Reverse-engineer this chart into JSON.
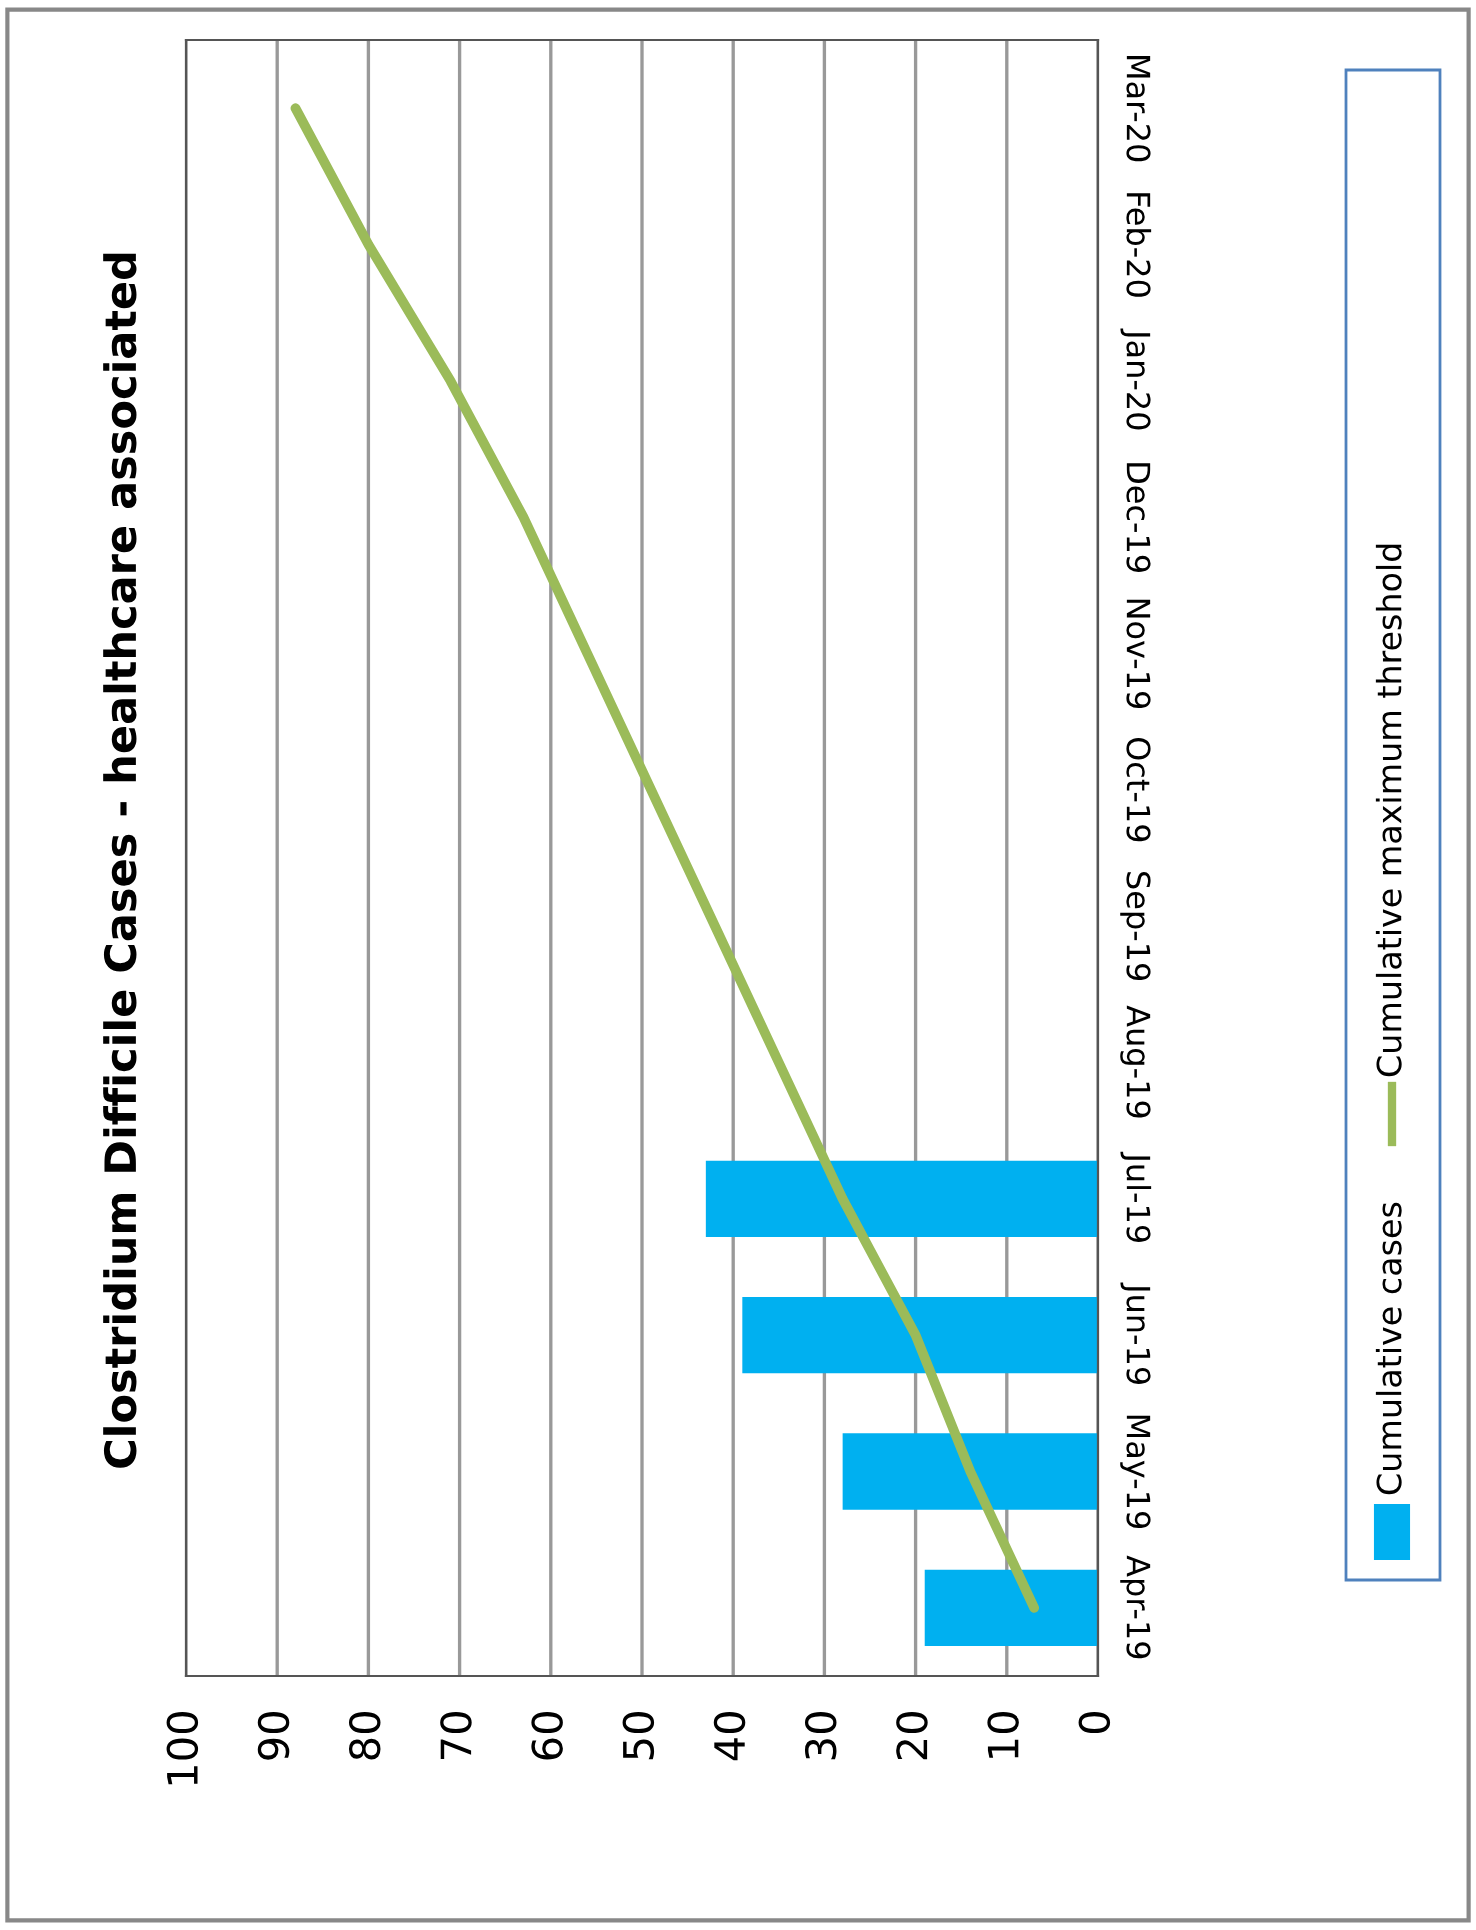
{
  "chart_data": {
    "type": "bar",
    "orientation": "horizontal",
    "title": "Clostridium Difficile Cases - healthcare associated",
    "categories": [
      "Mar-20",
      "Feb-20",
      "Jan-20",
      "Dec-19",
      "Nov-19",
      "Oct-19",
      "Sep-19",
      "Aug-19",
      "Jul-19",
      "Jun-19",
      "May-19",
      "Apr-19"
    ],
    "series": [
      {
        "name": "Cumulative cases",
        "color": "#00b0f0",
        "values": [
          null,
          null,
          null,
          null,
          null,
          null,
          null,
          null,
          43,
          39,
          28,
          19
        ]
      },
      {
        "name": "Cumulative maximum threshold",
        "type": "line",
        "color": "#9bbb59",
        "values": [
          88,
          80,
          71,
          63,
          56,
          49,
          42,
          35,
          28,
          20,
          14,
          7
        ]
      }
    ],
    "xlim": [
      100,
      0
    ],
    "xticks": [
      0,
      10,
      20,
      30,
      40,
      50,
      60,
      70,
      80,
      90,
      100
    ],
    "grid": "x",
    "legend": "right"
  }
}
